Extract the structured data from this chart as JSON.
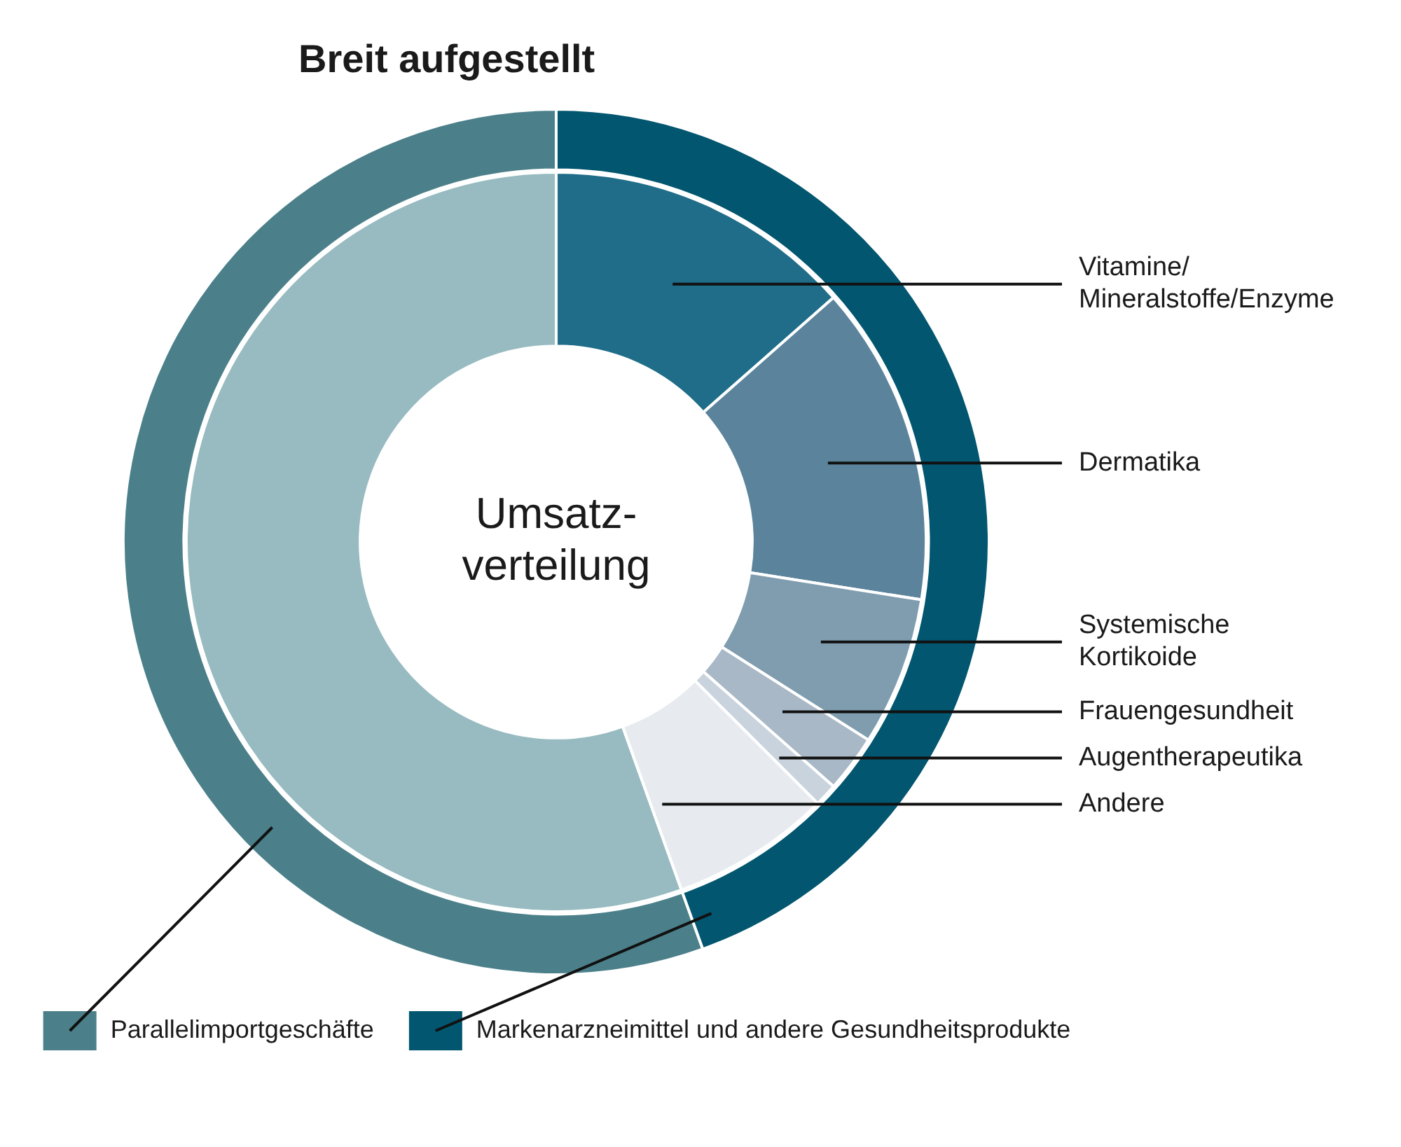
{
  "chart_data": [
    {
      "type": "donut",
      "title": "Breit aufgestellt",
      "categories": [
        "Parallelimportgeschäfte",
        "Markenarzneimittel und andere Gesundheitsprodukte"
      ],
      "values": [
        55.5,
        44.5
      ],
      "colors": [
        "#4b808a",
        "#02566f"
      ],
      "legend": "bottom"
    },
    {
      "type": "donut",
      "annotations": [
        "Umsatz-\nverteilung"
      ],
      "categories": [
        null,
        "Vitamine/Mineralstoffe/Enzyme",
        "Dermatika",
        "Systemische Kortikoide",
        "Frauengesundheit",
        "Augentherapeutika",
        "Andere"
      ],
      "values": [
        55.5,
        13.5,
        14,
        6.5,
        2.5,
        1,
        7
      ],
      "colors": [
        "#97bbc0",
        "#1f6d89",
        "#5b849c",
        "#7f9daf",
        "#a8b8c6",
        "#c8d3dd",
        "#e7ebef"
      ]
    }
  ]
}
